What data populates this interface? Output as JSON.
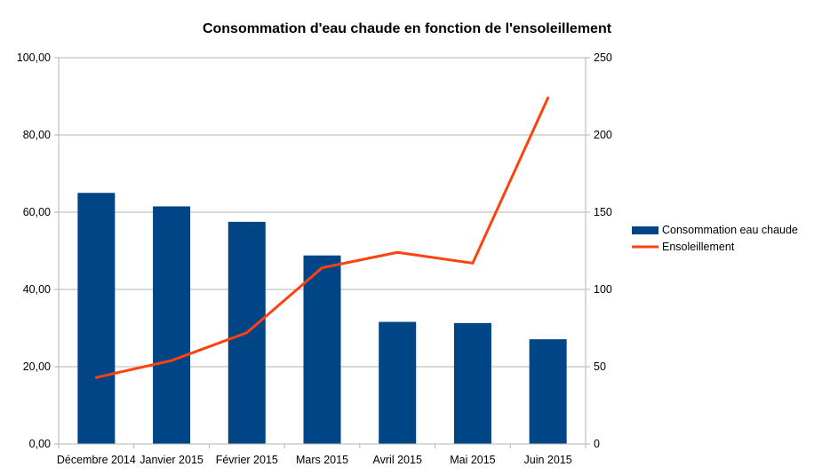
{
  "chart_data": {
    "type": "bar",
    "title": "Consommation d'eau chaude en fonction de l'ensoleillement",
    "categories": [
      "Décembre 2014",
      "Janvier 2015",
      "Février 2015",
      "Mars 2015",
      "Avril 2015",
      "Mai 2015",
      "Juin 2015"
    ],
    "series": [
      {
        "name": "Consommation eau chaude",
        "type": "bar",
        "axis": "left",
        "color": "#004586",
        "values": [
          65.0,
          61.5,
          57.5,
          48.8,
          31.6,
          31.3,
          27.1
        ]
      },
      {
        "name": "Ensoleillement",
        "type": "line",
        "axis": "right",
        "color": "#ff420e",
        "values": [
          43,
          54,
          72,
          114,
          124,
          117,
          224
        ]
      }
    ],
    "y_left": {
      "ylim": [
        0,
        100
      ],
      "ticks": [
        "0,00",
        "20,00",
        "40,00",
        "60,00",
        "80,00",
        "100,00"
      ]
    },
    "y_right": {
      "ylim": [
        0,
        250
      ],
      "ticks": [
        "0",
        "50",
        "100",
        "150",
        "200",
        "250"
      ]
    },
    "grid": true,
    "legend_position": "right"
  }
}
